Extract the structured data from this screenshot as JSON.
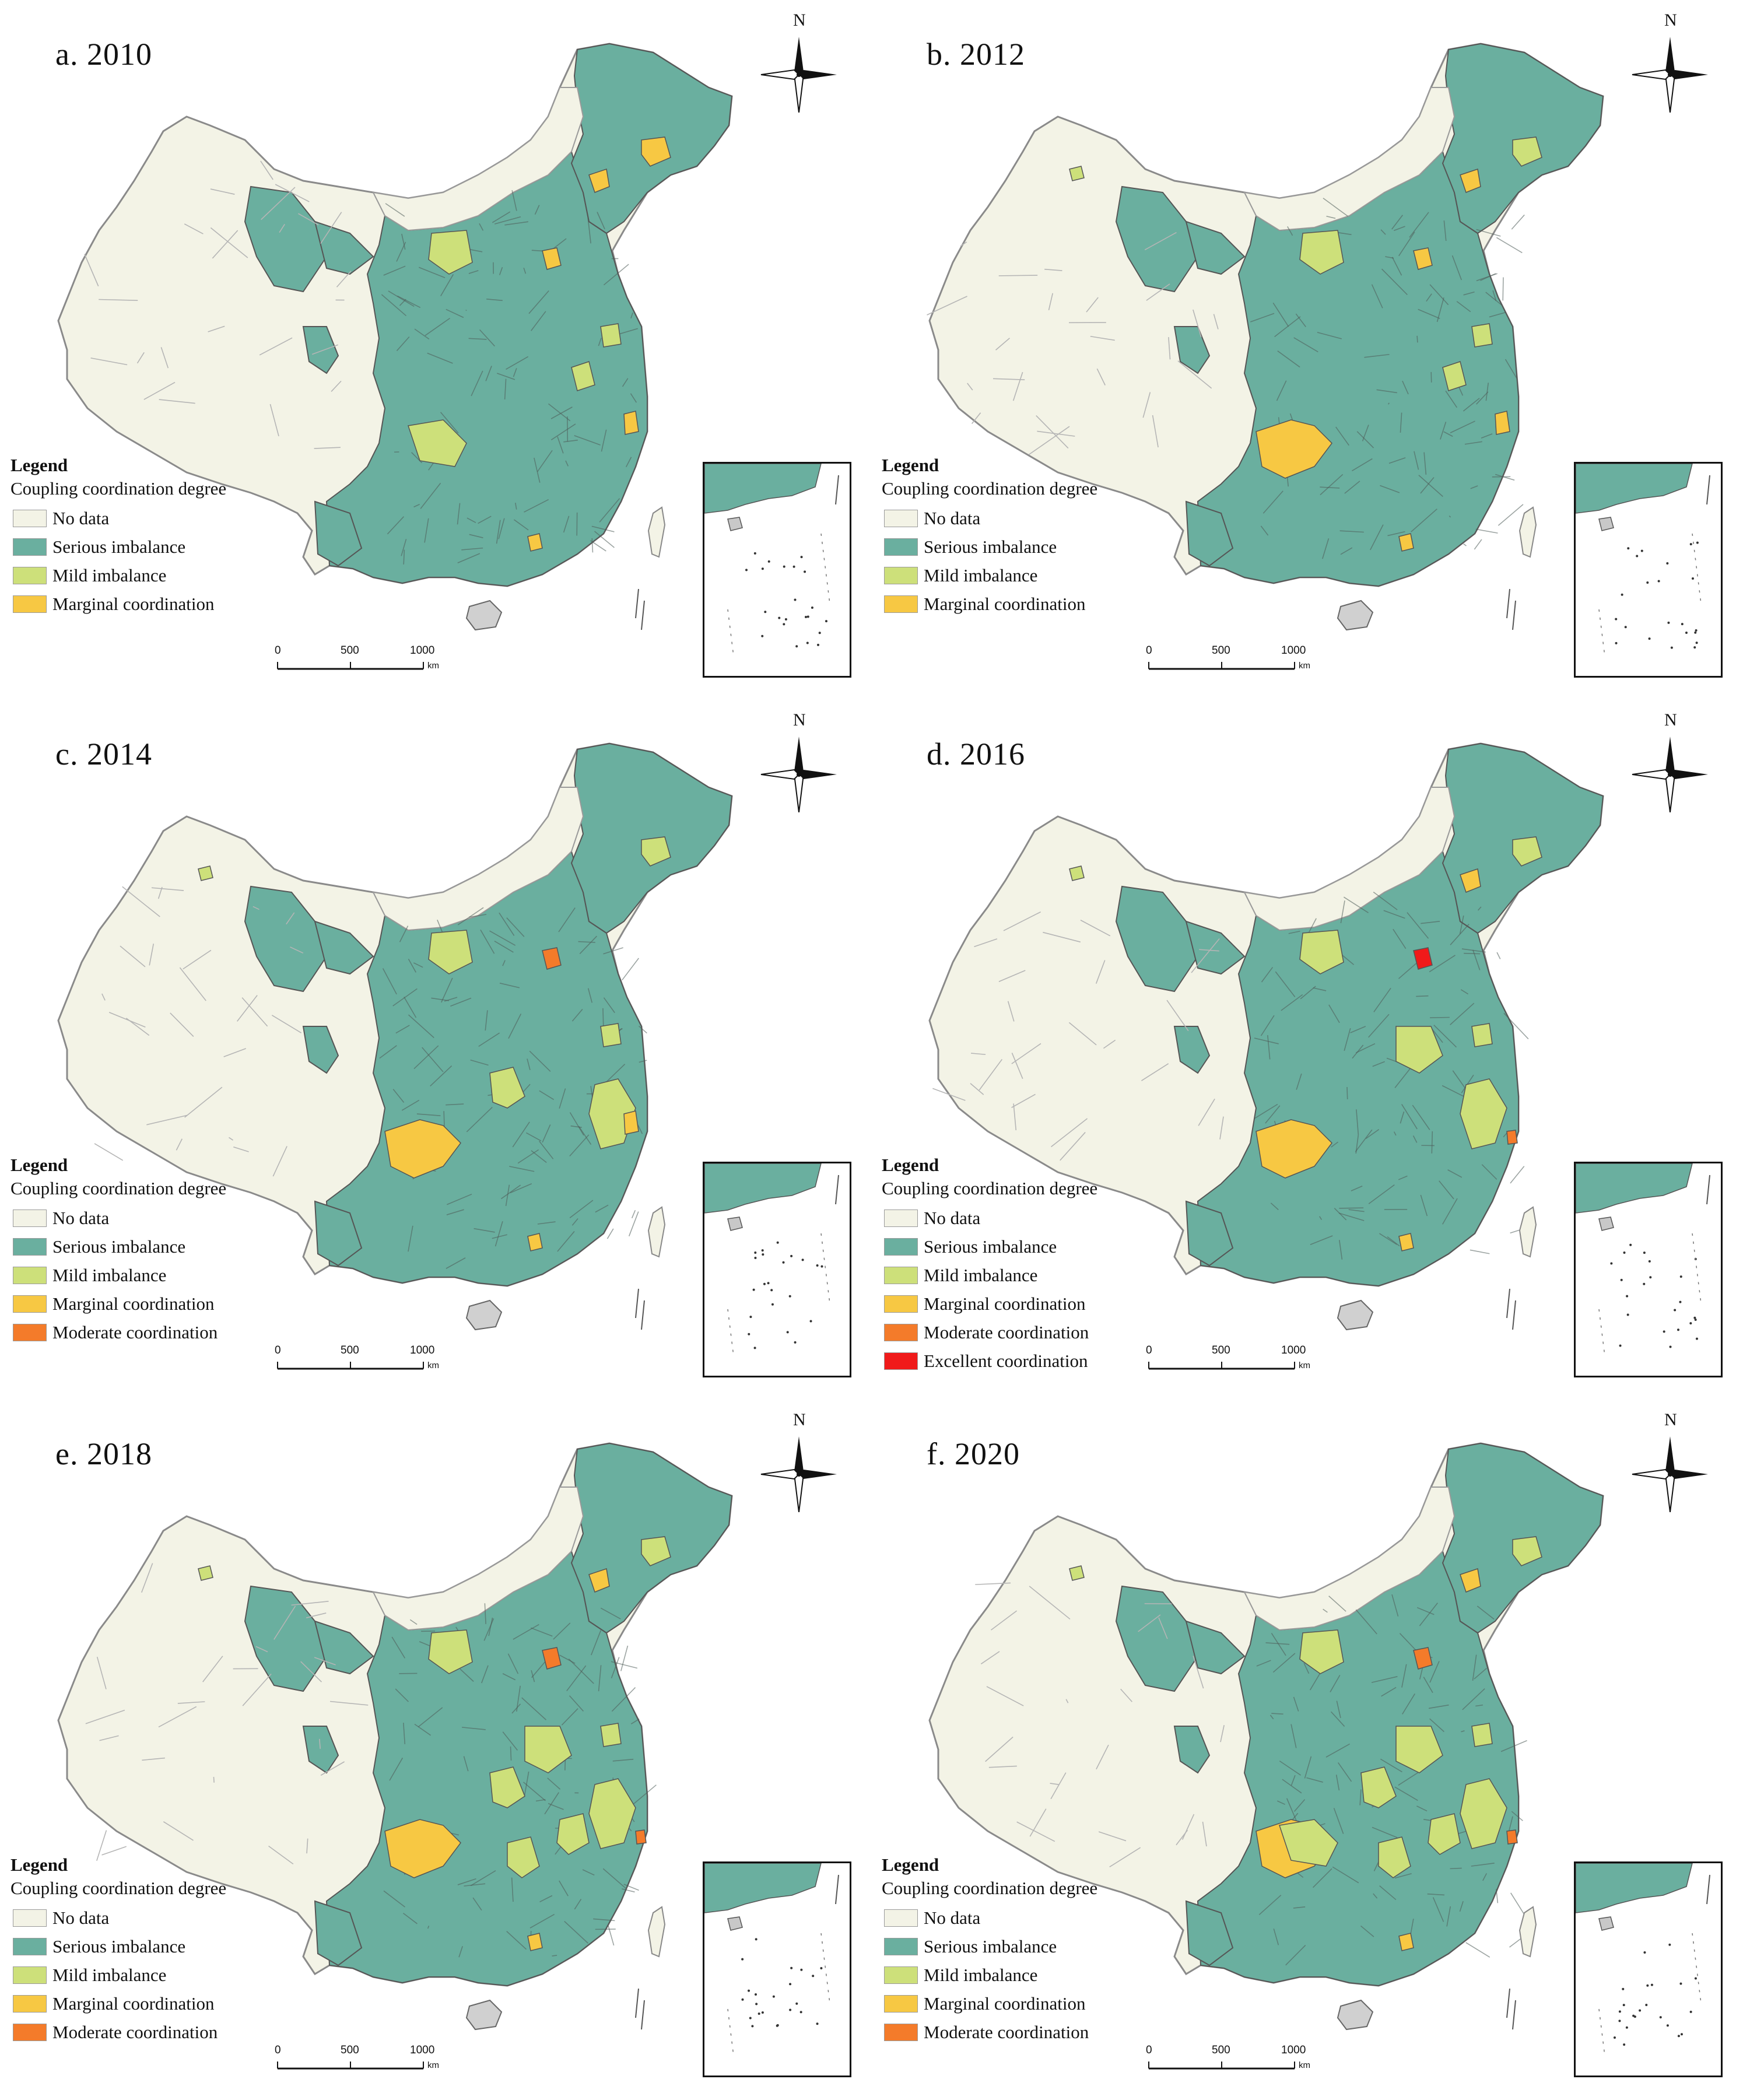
{
  "colors": {
    "no_data": "#f3f3e6",
    "serious_imbalance": "#6aaf9f",
    "mild_imbalance": "#cde07a",
    "marginal_coordination": "#f7c843",
    "moderate_coordination": "#f47b2a",
    "excellent_coordination": "#f01a1a",
    "border": "#555555"
  },
  "legend": {
    "title": "Legend",
    "subtitle": "Coupling coordination degree",
    "classes": {
      "no_data": "No data",
      "serious_imbalance": "Serious imbalance",
      "mild_imbalance": "Mild imbalance",
      "marginal_coordination": "Marginal coordination",
      "moderate_coordination": "Moderate coordination",
      "excellent_coordination": "Excellent coordination"
    }
  },
  "north_arrow": {
    "label": "N"
  },
  "scale_bar": {
    "ticks": [
      "0",
      "500",
      "1000"
    ],
    "unit": "km"
  },
  "panels": [
    {
      "title": "a. 2010",
      "legend_classes": [
        "no_data",
        "serious_imbalance",
        "mild_imbalance",
        "marginal_coordination"
      ]
    },
    {
      "title": "b. 2012",
      "legend_classes": [
        "no_data",
        "serious_imbalance",
        "mild_imbalance",
        "marginal_coordination"
      ]
    },
    {
      "title": "c. 2014",
      "legend_classes": [
        "no_data",
        "serious_imbalance",
        "mild_imbalance",
        "marginal_coordination",
        "moderate_coordination"
      ]
    },
    {
      "title": "d. 2016",
      "legend_classes": [
        "no_data",
        "serious_imbalance",
        "mild_imbalance",
        "marginal_coordination",
        "moderate_coordination",
        "excellent_coordination"
      ]
    },
    {
      "title": "e. 2018",
      "legend_classes": [
        "no_data",
        "serious_imbalance",
        "mild_imbalance",
        "marginal_coordination",
        "moderate_coordination"
      ]
    },
    {
      "title": "f. 2020",
      "legend_classes": [
        "no_data",
        "serious_imbalance",
        "mild_imbalance",
        "marginal_coordination",
        "moderate_coordination"
      ]
    }
  ]
}
